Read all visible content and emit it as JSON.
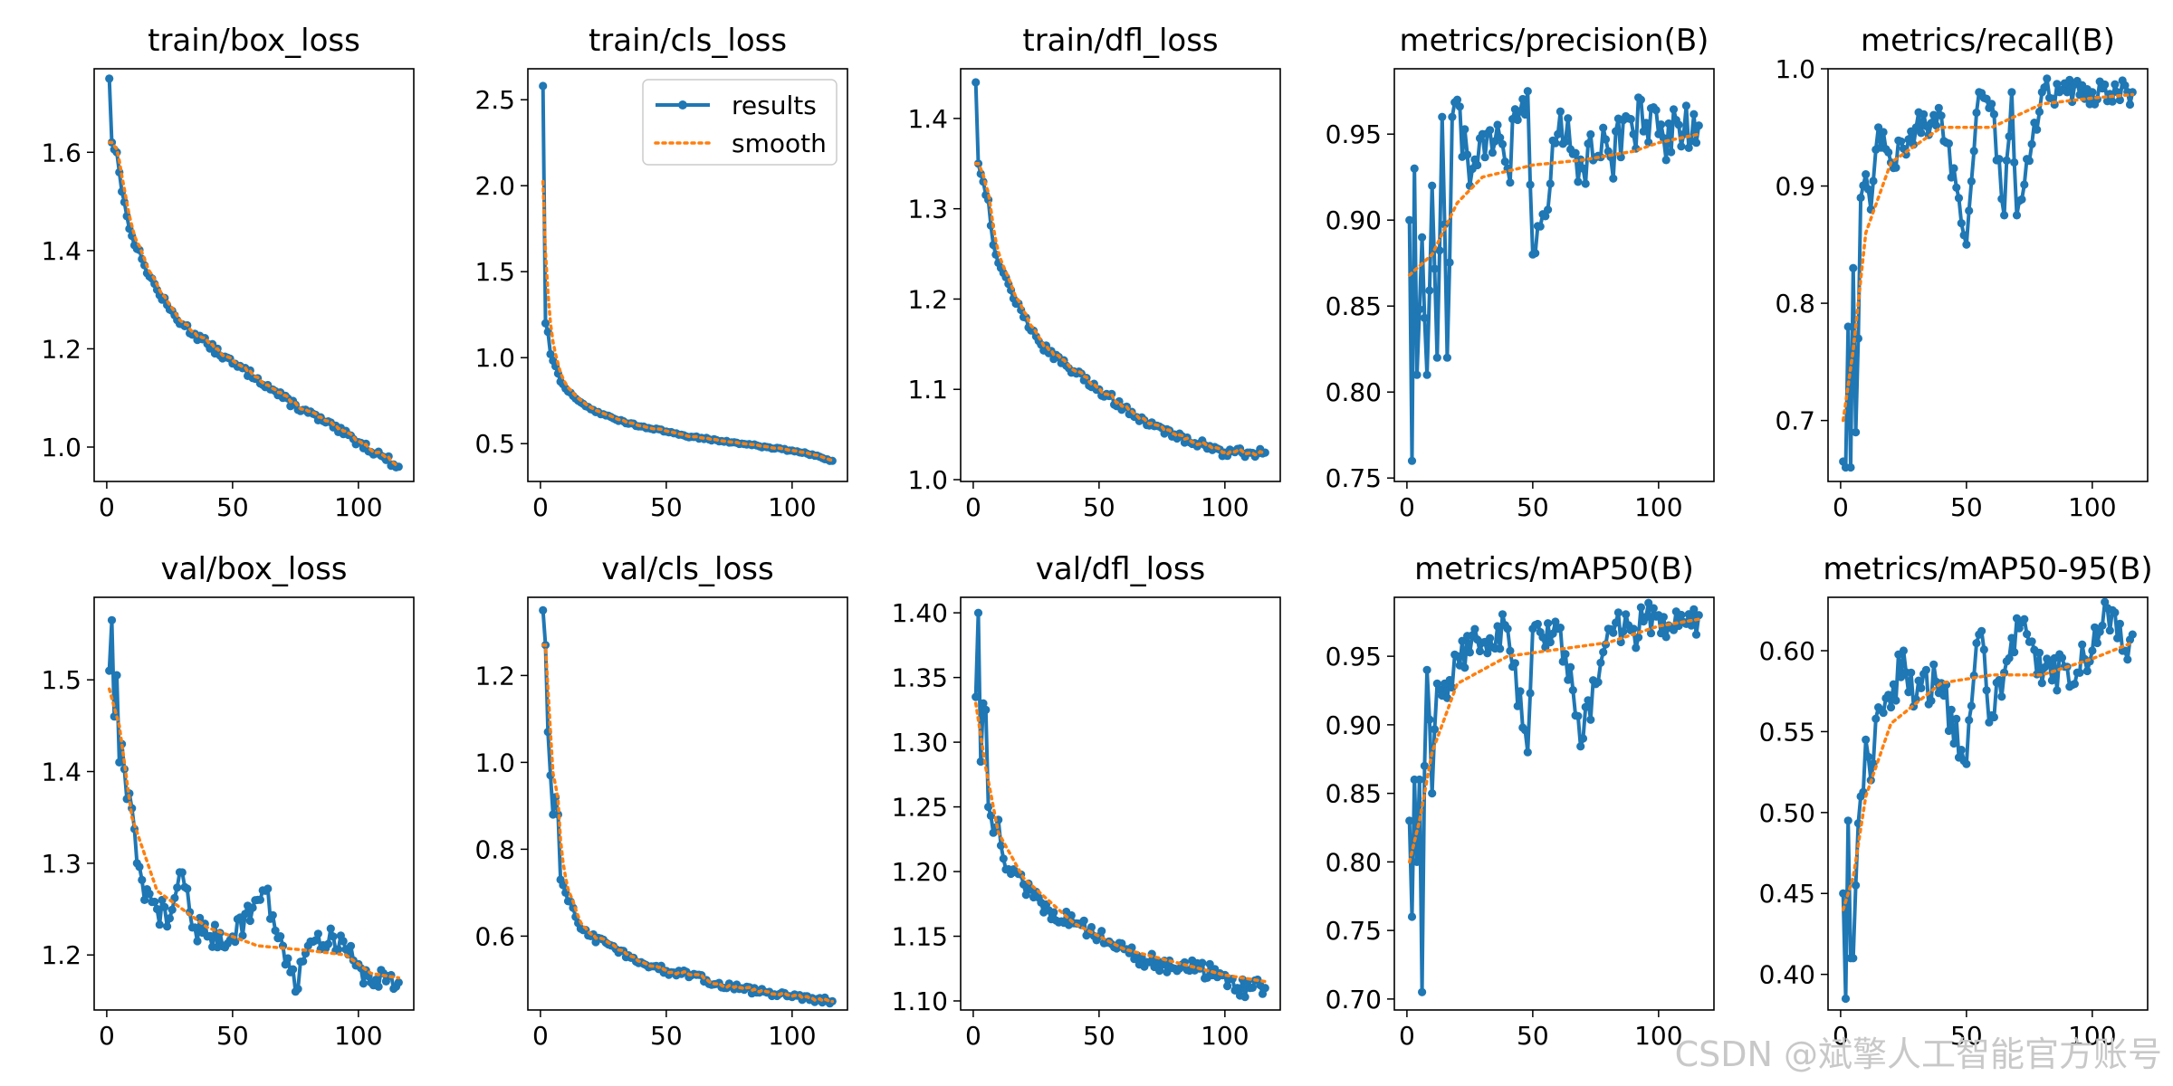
{
  "figure": {
    "legend": {
      "results_label": "results",
      "smooth_label": "smooth",
      "placement": "upper-right of train/cls_loss"
    },
    "watermark": "CSDN @斌擎人工智能官方账号",
    "colors": {
      "results": "#1f77b4",
      "smooth": "#ff7f0e"
    }
  },
  "chart_data": [
    {
      "type": "line",
      "title": "train/box_loss",
      "xlim": [
        -5,
        122
      ],
      "ylim": [
        0.93,
        1.77
      ],
      "xticks": [
        0,
        50,
        100
      ],
      "xtick_labels": [
        "0",
        "50",
        "100"
      ],
      "yticks": [
        1.0,
        1.2,
        1.4,
        1.6
      ],
      "ytick_labels": [
        "1.0",
        "1.2",
        "1.4",
        "1.6"
      ],
      "anchors": [
        [
          1,
          1.75
        ],
        [
          2,
          1.62
        ],
        [
          4,
          1.6
        ],
        [
          6,
          1.52
        ],
        [
          8,
          1.47
        ],
        [
          10,
          1.43
        ],
        [
          15,
          1.37
        ],
        [
          20,
          1.32
        ],
        [
          25,
          1.28
        ],
        [
          30,
          1.25
        ],
        [
          40,
          1.21
        ],
        [
          50,
          1.17
        ],
        [
          60,
          1.14
        ],
        [
          70,
          1.1
        ],
        [
          80,
          1.07
        ],
        [
          90,
          1.04
        ],
        [
          100,
          1.01
        ],
        [
          110,
          0.98
        ],
        [
          116,
          0.96
        ]
      ],
      "noise": 0.008,
      "smooth_noise": 0.003
    },
    {
      "type": "line",
      "title": "train/cls_loss",
      "xlim": [
        -5,
        122
      ],
      "ylim": [
        0.28,
        2.68
      ],
      "xticks": [
        0,
        50,
        100
      ],
      "xtick_labels": [
        "0",
        "50",
        "100"
      ],
      "yticks": [
        0.5,
        1.0,
        1.5,
        2.0,
        2.5
      ],
      "ytick_labels": [
        "0.5",
        "1.0",
        "1.5",
        "2.0",
        "2.5"
      ],
      "anchors": [
        [
          1,
          2.58
        ],
        [
          2,
          1.2
        ],
        [
          3,
          1.15
        ],
        [
          4,
          1.02
        ],
        [
          6,
          0.95
        ],
        [
          8,
          0.86
        ],
        [
          10,
          0.82
        ],
        [
          15,
          0.75
        ],
        [
          20,
          0.7
        ],
        [
          30,
          0.64
        ],
        [
          40,
          0.6
        ],
        [
          50,
          0.57
        ],
        [
          60,
          0.54
        ],
        [
          70,
          0.52
        ],
        [
          80,
          0.5
        ],
        [
          90,
          0.48
        ],
        [
          100,
          0.46
        ],
        [
          110,
          0.43
        ],
        [
          116,
          0.4
        ]
      ],
      "noise": 0.006,
      "smooth_noise": 0.002,
      "smooth_start": 1.47,
      "legend": true
    },
    {
      "type": "line",
      "title": "train/dfl_loss",
      "xlim": [
        -5,
        122
      ],
      "ylim": [
        0.998,
        1.455
      ],
      "xticks": [
        0,
        50,
        100
      ],
      "xtick_labels": [
        "0",
        "50",
        "100"
      ],
      "yticks": [
        1.0,
        1.1,
        1.2,
        1.3,
        1.4
      ],
      "ytick_labels": [
        "1.0",
        "1.1",
        "1.2",
        "1.3",
        "1.4"
      ],
      "anchors": [
        [
          1,
          1.44
        ],
        [
          2,
          1.35
        ],
        [
          4,
          1.33
        ],
        [
          6,
          1.31
        ],
        [
          8,
          1.26
        ],
        [
          10,
          1.24
        ],
        [
          15,
          1.21
        ],
        [
          20,
          1.18
        ],
        [
          30,
          1.14
        ],
        [
          40,
          1.12
        ],
        [
          50,
          1.1
        ],
        [
          60,
          1.08
        ],
        [
          70,
          1.06
        ],
        [
          80,
          1.05
        ],
        [
          90,
          1.04
        ],
        [
          100,
          1.03
        ],
        [
          110,
          1.03
        ],
        [
          116,
          1.03
        ]
      ],
      "noise": 0.005,
      "smooth_noise": 0.002
    },
    {
      "type": "line",
      "title": "metrics/precision(B)",
      "xlim": [
        -5,
        122
      ],
      "ylim": [
        0.748,
        0.988
      ],
      "xticks": [
        0,
        50,
        100
      ],
      "xtick_labels": [
        "0",
        "50",
        "100"
      ],
      "yticks": [
        0.75,
        0.8,
        0.85,
        0.9,
        0.95
      ],
      "ytick_labels": [
        "0.75",
        "0.80",
        "0.85",
        "0.90",
        "0.95"
      ],
      "anchors": [
        [
          1,
          0.9
        ],
        [
          2,
          0.76
        ],
        [
          3,
          0.93
        ],
        [
          4,
          0.81
        ],
        [
          6,
          0.89
        ],
        [
          8,
          0.81
        ],
        [
          10,
          0.92
        ],
        [
          12,
          0.82
        ],
        [
          14,
          0.96
        ],
        [
          16,
          0.82
        ],
        [
          18,
          0.96
        ],
        [
          20,
          0.97
        ],
        [
          25,
          0.92
        ],
        [
          30,
          0.95
        ],
        [
          40,
          0.93
        ],
        [
          48,
          0.975
        ],
        [
          50,
          0.88
        ],
        [
          60,
          0.95
        ],
        [
          70,
          0.93
        ],
        [
          80,
          0.94
        ],
        [
          90,
          0.95
        ],
        [
          93,
          0.97
        ],
        [
          100,
          0.95
        ],
        [
          110,
          0.95
        ],
        [
          116,
          0.955
        ]
      ],
      "noise": 0.018,
      "smooth": [
        [
          1,
          0.868
        ],
        [
          10,
          0.88
        ],
        [
          20,
          0.91
        ],
        [
          30,
          0.925
        ],
        [
          50,
          0.932
        ],
        [
          70,
          0.935
        ],
        [
          90,
          0.94
        ],
        [
          100,
          0.945
        ],
        [
          116,
          0.95
        ]
      ]
    },
    {
      "type": "line",
      "title": "metrics/recall(B)",
      "xlim": [
        -5,
        122
      ],
      "ylim": [
        0.648,
        1.0
      ],
      "xticks": [
        0,
        50,
        100
      ],
      "xtick_labels": [
        "0",
        "50",
        "100"
      ],
      "yticks": [
        0.7,
        0.8,
        0.9,
        1.0
      ],
      "ytick_labels": [
        "0.7",
        "0.8",
        "0.9",
        "1.0"
      ],
      "anchors": [
        [
          1,
          0.665
        ],
        [
          2,
          0.66
        ],
        [
          3,
          0.78
        ],
        [
          4,
          0.66
        ],
        [
          5,
          0.83
        ],
        [
          6,
          0.69
        ],
        [
          7,
          0.77
        ],
        [
          8,
          0.89
        ],
        [
          10,
          0.91
        ],
        [
          12,
          0.88
        ],
        [
          15,
          0.95
        ],
        [
          20,
          0.92
        ],
        [
          30,
          0.95
        ],
        [
          40,
          0.96
        ],
        [
          50,
          0.85
        ],
        [
          55,
          0.98
        ],
        [
          60,
          0.97
        ],
        [
          65,
          0.875
        ],
        [
          68,
          0.98
        ],
        [
          70,
          0.875
        ],
        [
          80,
          0.98
        ],
        [
          90,
          0.98
        ],
        [
          100,
          0.98
        ],
        [
          110,
          0.98
        ],
        [
          116,
          0.98
        ]
      ],
      "noise": 0.012,
      "smooth": [
        [
          1,
          0.7
        ],
        [
          5,
          0.76
        ],
        [
          10,
          0.86
        ],
        [
          20,
          0.92
        ],
        [
          40,
          0.95
        ],
        [
          60,
          0.95
        ],
        [
          80,
          0.97
        ],
        [
          100,
          0.975
        ],
        [
          116,
          0.978
        ]
      ]
    },
    {
      "type": "line",
      "title": "val/box_loss",
      "xlim": [
        -5,
        122
      ],
      "ylim": [
        1.14,
        1.59
      ],
      "xticks": [
        0,
        50,
        100
      ],
      "xtick_labels": [
        "0",
        "50",
        "100"
      ],
      "yticks": [
        1.2,
        1.3,
        1.4,
        1.5
      ],
      "ytick_labels": [
        "1.2",
        "1.3",
        "1.4",
        "1.5"
      ],
      "anchors": [
        [
          1,
          1.51
        ],
        [
          2,
          1.565
        ],
        [
          3,
          1.46
        ],
        [
          4,
          1.505
        ],
        [
          5,
          1.41
        ],
        [
          6,
          1.43
        ],
        [
          8,
          1.37
        ],
        [
          10,
          1.36
        ],
        [
          12,
          1.3
        ],
        [
          15,
          1.26
        ],
        [
          20,
          1.25
        ],
        [
          25,
          1.24
        ],
        [
          30,
          1.29
        ],
        [
          35,
          1.23
        ],
        [
          40,
          1.22
        ],
        [
          50,
          1.22
        ],
        [
          60,
          1.26
        ],
        [
          63,
          1.27
        ],
        [
          70,
          1.21
        ],
        [
          75,
          1.16
        ],
        [
          80,
          1.21
        ],
        [
          90,
          1.22
        ],
        [
          100,
          1.19
        ],
        [
          105,
          1.17
        ],
        [
          110,
          1.18
        ],
        [
          116,
          1.17
        ]
      ],
      "noise": 0.015,
      "smooth": [
        [
          1,
          1.49
        ],
        [
          5,
          1.45
        ],
        [
          10,
          1.35
        ],
        [
          20,
          1.27
        ],
        [
          40,
          1.23
        ],
        [
          60,
          1.21
        ],
        [
          80,
          1.205
        ],
        [
          95,
          1.2
        ],
        [
          105,
          1.18
        ],
        [
          116,
          1.175
        ]
      ]
    },
    {
      "type": "line",
      "title": "val/cls_loss",
      "xlim": [
        -5,
        122
      ],
      "ylim": [
        0.43,
        1.38
      ],
      "xticks": [
        0,
        50,
        100
      ],
      "xtick_labels": [
        "0",
        "50",
        "100"
      ],
      "yticks": [
        0.6,
        0.8,
        1.0,
        1.2
      ],
      "ytick_labels": [
        "0.6",
        "0.8",
        "1.0",
        "1.2"
      ],
      "anchors": [
        [
          1,
          1.35
        ],
        [
          2,
          1.27
        ],
        [
          3,
          1.07
        ],
        [
          4,
          0.97
        ],
        [
          5,
          0.88
        ],
        [
          6,
          0.92
        ],
        [
          7,
          0.88
        ],
        [
          8,
          0.73
        ],
        [
          10,
          0.7
        ],
        [
          15,
          0.63
        ],
        [
          20,
          0.6
        ],
        [
          30,
          0.57
        ],
        [
          40,
          0.54
        ],
        [
          50,
          0.52
        ],
        [
          60,
          0.51
        ],
        [
          70,
          0.49
        ],
        [
          80,
          0.48
        ],
        [
          90,
          0.47
        ],
        [
          100,
          0.46
        ],
        [
          110,
          0.455
        ],
        [
          116,
          0.45
        ]
      ],
      "noise": 0.008,
      "smooth_noise": 0.003
    },
    {
      "type": "line",
      "title": "val/dfl_loss",
      "xlim": [
        -5,
        122
      ],
      "ylim": [
        1.093,
        1.412
      ],
      "xticks": [
        0,
        50,
        100
      ],
      "xtick_labels": [
        "0",
        "50",
        "100"
      ],
      "yticks": [
        1.1,
        1.15,
        1.2,
        1.25,
        1.3,
        1.35,
        1.4
      ],
      "ytick_labels": [
        "1.10",
        "1.15",
        "1.20",
        "1.25",
        "1.30",
        "1.35",
        "1.40"
      ],
      "anchors": [
        [
          1,
          1.335
        ],
        [
          2,
          1.4
        ],
        [
          3,
          1.285
        ],
        [
          4,
          1.33
        ],
        [
          5,
          1.325
        ],
        [
          6,
          1.25
        ],
        [
          8,
          1.23
        ],
        [
          10,
          1.24
        ],
        [
          12,
          1.21
        ],
        [
          20,
          1.19
        ],
        [
          30,
          1.17
        ],
        [
          40,
          1.16
        ],
        [
          50,
          1.15
        ],
        [
          60,
          1.14
        ],
        [
          70,
          1.13
        ],
        [
          80,
          1.125
        ],
        [
          90,
          1.125
        ],
        [
          100,
          1.12
        ],
        [
          105,
          1.11
        ],
        [
          110,
          1.11
        ],
        [
          116,
          1.11
        ]
      ],
      "noise": 0.007,
      "smooth": [
        [
          1,
          1.33
        ],
        [
          5,
          1.28
        ],
        [
          10,
          1.23
        ],
        [
          20,
          1.195
        ],
        [
          40,
          1.16
        ],
        [
          60,
          1.14
        ],
        [
          80,
          1.13
        ],
        [
          100,
          1.12
        ],
        [
          116,
          1.115
        ]
      ]
    },
    {
      "type": "line",
      "title": "metrics/mAP50(B)",
      "xlim": [
        -5,
        122
      ],
      "ylim": [
        0.692,
        0.993
      ],
      "xticks": [
        0,
        50,
        100
      ],
      "xtick_labels": [
        "0",
        "50",
        "100"
      ],
      "yticks": [
        0.7,
        0.75,
        0.8,
        0.85,
        0.9,
        0.95
      ],
      "ytick_labels": [
        "0.70",
        "0.75",
        "0.80",
        "0.85",
        "0.90",
        "0.95"
      ],
      "anchors": [
        [
          1,
          0.83
        ],
        [
          2,
          0.76
        ],
        [
          3,
          0.86
        ],
        [
          4,
          0.8
        ],
        [
          5,
          0.86
        ],
        [
          6,
          0.705
        ],
        [
          7,
          0.87
        ],
        [
          8,
          0.94
        ],
        [
          10,
          0.85
        ],
        [
          12,
          0.93
        ],
        [
          15,
          0.93
        ],
        [
          20,
          0.95
        ],
        [
          30,
          0.96
        ],
        [
          40,
          0.97
        ],
        [
          48,
          0.88
        ],
        [
          50,
          0.97
        ],
        [
          60,
          0.97
        ],
        [
          70,
          0.89
        ],
        [
          80,
          0.97
        ],
        [
          90,
          0.97
        ],
        [
          100,
          0.98
        ],
        [
          110,
          0.975
        ],
        [
          116,
          0.98
        ]
      ],
      "noise": 0.015,
      "smooth": [
        [
          1,
          0.8
        ],
        [
          5,
          0.83
        ],
        [
          10,
          0.88
        ],
        [
          20,
          0.93
        ],
        [
          40,
          0.95
        ],
        [
          60,
          0.955
        ],
        [
          80,
          0.96
        ],
        [
          100,
          0.972
        ],
        [
          116,
          0.977
        ]
      ]
    },
    {
      "type": "line",
      "title": "metrics/mAP50-95(B)",
      "xlim": [
        -5,
        122
      ],
      "ylim": [
        0.378,
        0.633
      ],
      "xticks": [
        0,
        50,
        100
      ],
      "xtick_labels": [
        "0",
        "50",
        "100"
      ],
      "yticks": [
        0.4,
        0.45,
        0.5,
        0.55,
        0.6
      ],
      "ytick_labels": [
        "0.40",
        "0.45",
        "0.50",
        "0.55",
        "0.60"
      ],
      "anchors": [
        [
          1,
          0.45
        ],
        [
          2,
          0.385
        ],
        [
          3,
          0.495
        ],
        [
          4,
          0.41
        ],
        [
          5,
          0.41
        ],
        [
          6,
          0.455
        ],
        [
          8,
          0.51
        ],
        [
          10,
          0.545
        ],
        [
          12,
          0.52
        ],
        [
          15,
          0.565
        ],
        [
          20,
          0.565
        ],
        [
          25,
          0.6
        ],
        [
          30,
          0.57
        ],
        [
          40,
          0.58
        ],
        [
          50,
          0.53
        ],
        [
          55,
          0.61
        ],
        [
          60,
          0.56
        ],
        [
          70,
          0.62
        ],
        [
          80,
          0.58
        ],
        [
          90,
          0.59
        ],
        [
          100,
          0.6
        ],
        [
          108,
          0.625
        ],
        [
          112,
          0.6
        ],
        [
          116,
          0.61
        ]
      ],
      "noise": 0.015,
      "smooth": [
        [
          1,
          0.44
        ],
        [
          5,
          0.46
        ],
        [
          10,
          0.51
        ],
        [
          20,
          0.555
        ],
        [
          40,
          0.58
        ],
        [
          60,
          0.585
        ],
        [
          80,
          0.585
        ],
        [
          100,
          0.595
        ],
        [
          116,
          0.605
        ]
      ]
    }
  ]
}
